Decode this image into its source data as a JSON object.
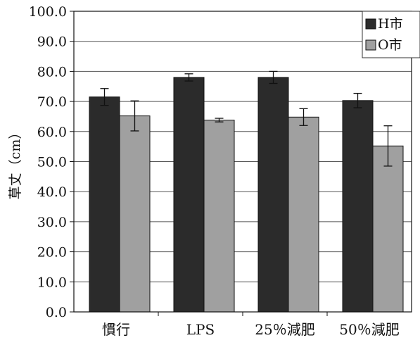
{
  "chart_data": {
    "type": "bar",
    "categories": [
      "慣行",
      "LPS",
      "25％減肥",
      "50％減肥"
    ],
    "series": [
      {
        "name": "H市",
        "values": [
          71.5,
          78.0,
          78.0,
          70.3
        ],
        "errors": [
          2.8,
          1.2,
          2.0,
          2.4
        ],
        "color": "#2b2b2b"
      },
      {
        "name": "O市",
        "values": [
          65.2,
          63.8,
          64.8,
          55.2
        ],
        "errors": [
          5.0,
          0.6,
          2.8,
          6.7
        ],
        "color": "#a0a0a0"
      }
    ],
    "ylabel": "草丈（cm）",
    "ylim": [
      0,
      100
    ],
    "yticks": [
      "0.0",
      "10.0",
      "20.0",
      "30.0",
      "40.0",
      "50.0",
      "60.0",
      "70.0",
      "80.0",
      "90.0",
      "100.0"
    ],
    "grid": true,
    "legend_position": "top-right"
  }
}
